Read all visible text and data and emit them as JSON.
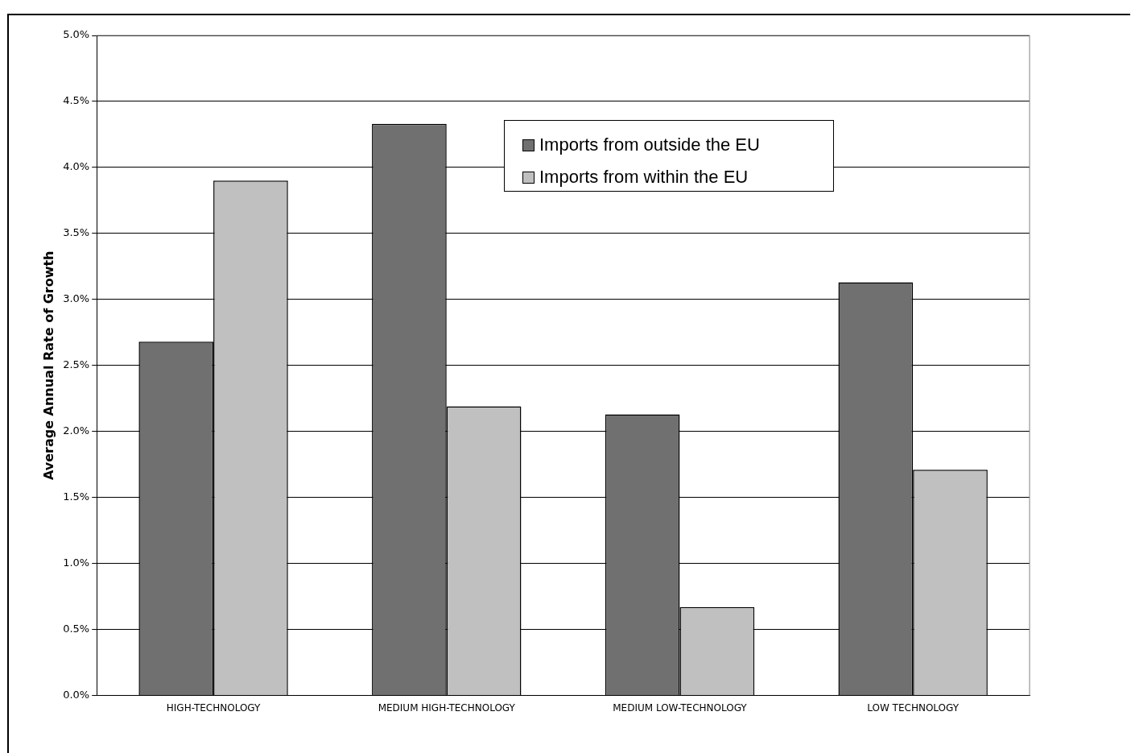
{
  "chart_data": {
    "type": "bar",
    "ylabel": "Average Annual Rate of Growth",
    "categories": [
      "HIGH-TECHNOLOGY",
      "MEDIUM HIGH-TECHNOLOGY",
      "MEDIUM LOW-TECHNOLOGY",
      "LOW TECHNOLOGY"
    ],
    "series": [
      {
        "name": "Imports from outside the EU",
        "color": "#707070",
        "values": [
          2.68,
          4.33,
          2.13,
          3.13
        ]
      },
      {
        "name": "Imports from within the EU",
        "color": "#c0c0c0",
        "values": [
          3.9,
          2.19,
          0.67,
          1.71
        ]
      }
    ],
    "ylim": [
      0,
      5
    ],
    "yticks": [
      {
        "value": 0,
        "label": "0.0%"
      },
      {
        "value": 0.5,
        "label": "0.5%"
      },
      {
        "value": 1,
        "label": "1.0%"
      },
      {
        "value": 1.5,
        "label": "1.5%"
      },
      {
        "value": 2,
        "label": "2.0%"
      },
      {
        "value": 2.5,
        "label": "2.5%"
      },
      {
        "value": 3,
        "label": "3.0%"
      },
      {
        "value": 3.5,
        "label": "3.5%"
      },
      {
        "value": 4,
        "label": "4.0%"
      },
      {
        "value": 4.5,
        "label": "4.5%"
      },
      {
        "value": 5,
        "label": "5.0%"
      }
    ],
    "grid": "y",
    "legend": "top right"
  }
}
